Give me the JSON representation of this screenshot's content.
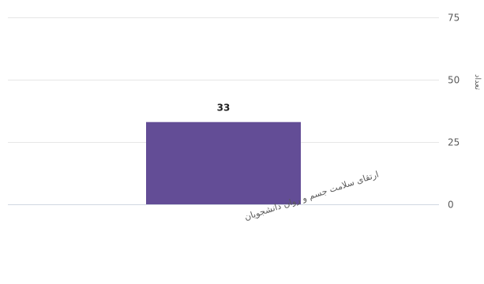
{
  "chart_data": {
    "type": "bar",
    "categories": [
      "ارتقای سلامت جسم و روان دانشجویان"
    ],
    "values": [
      33
    ],
    "data_labels": [
      "33"
    ],
    "ylabel": "تعداد",
    "ylim": [
      0,
      75
    ],
    "yticks": [
      0,
      25,
      50,
      75
    ],
    "y_axis_side": "right",
    "grid": true,
    "legend": "none",
    "bar_color": "#634d96"
  }
}
